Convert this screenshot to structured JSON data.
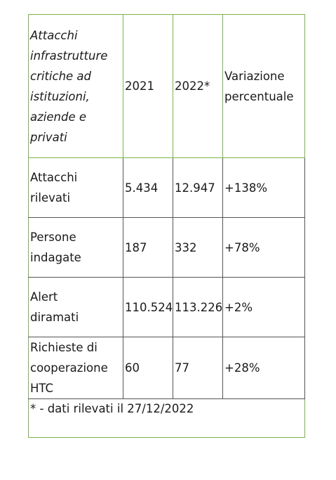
{
  "table": {
    "header": {
      "title_lines": [
        "Attacchi",
        "infrastrutture",
        "critiche ad",
        "istituzioni,",
        "aziende e",
        "privati"
      ],
      "col_2021": "2021",
      "col_2022": "2022*",
      "col_change_lines": [
        "Variazione",
        "percentuale"
      ]
    },
    "rows": [
      {
        "label_lines": [
          "Attacchi",
          "rilevati"
        ],
        "v2021": "5.434",
        "v2022": "12.947",
        "change": "+138%"
      },
      {
        "label_lines": [
          "Persone",
          "indagate"
        ],
        "v2021": "187",
        "v2022": "332",
        "change": "+78%"
      },
      {
        "label_lines": [
          "Alert",
          "diramati"
        ],
        "v2021": "110.524",
        "v2022": "113.226",
        "change": "+2%"
      },
      {
        "label_lines": [
          "Richieste di",
          "cooperazione",
          "HTC"
        ],
        "v2021": "60",
        "v2022": "77",
        "change": "+28%"
      }
    ],
    "footnote": "* - dati rilevati il 27/12/2022"
  },
  "colors": {
    "green_border": "#7ab648",
    "dark_border": "#555555",
    "text": "#1a1a1a"
  }
}
